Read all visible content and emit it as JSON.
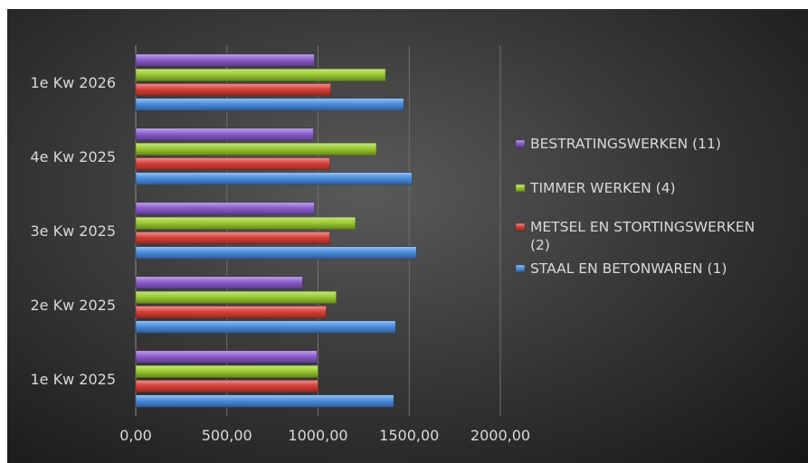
{
  "chart_data": {
    "type": "bar",
    "orientation": "horizontal",
    "categories": [
      "1e Kw 2025",
      "2e Kw 2025",
      "3e Kw 2025",
      "4e Kw 2025",
      "1e Kw 2026"
    ],
    "x_ticks": [
      "0,00",
      "500,00",
      "1000,00",
      "1500,00",
      "2000,00"
    ],
    "xlim": [
      0,
      2000
    ],
    "grid": true,
    "legend_position": "right",
    "series": [
      {
        "name": "STAAL EN  BETONWAREN (1)",
        "color": "#4a8fe0",
        "values": [
          1415,
          1425,
          1540,
          1515,
          1470
        ]
      },
      {
        "name": "METSEL EN STORTINGSWERKEN (2)",
        "color": "#d9413a",
        "values": [
          1000,
          1045,
          1065,
          1065,
          1070
        ]
      },
      {
        "name": "TIMMER WERKEN (4)",
        "color": "#9ccc2f",
        "values": [
          1000,
          1100,
          1205,
          1320,
          1370
        ]
      },
      {
        "name": "BESTRATINGSWERKEN (11)",
        "color": "#8b5ecf",
        "values": [
          995,
          915,
          980,
          975,
          980
        ]
      }
    ],
    "legend_lines": {
      "BESTRATINGSWERKEN (11)": [
        "BESTRATINGSWERKEN (11)"
      ],
      "TIMMER WERKEN (4)": [
        "TIMMER WERKEN (4)"
      ],
      "METSEL EN STORTINGSWERKEN (2)": [
        "METSEL EN STORTINGSWERKEN",
        "(2)"
      ],
      "STAAL EN  BETONWAREN (1)": [
        "STAAL EN  BETONWAREN (1)"
      ]
    },
    "legend_order": [
      "BESTRATINGSWERKEN (11)",
      "TIMMER WERKEN (4)",
      "METSEL EN STORTINGSWERKEN (2)",
      "STAAL EN  BETONWAREN (1)"
    ]
  }
}
